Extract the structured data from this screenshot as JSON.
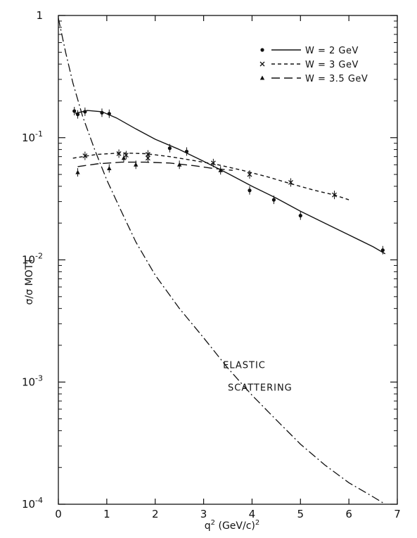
{
  "chart_data": {
    "type": "scatter",
    "title": "",
    "xlabel": "q² (GeV/c)²",
    "ylabel": "σ/σ MOTT",
    "xlim": [
      0,
      7
    ],
    "ylim": [
      0.0001,
      1
    ],
    "yscale": "log",
    "grid": false,
    "legend_position": "top-right",
    "x_ticks": [
      0,
      1,
      2,
      3,
      4,
      5,
      6,
      7
    ],
    "x_tick_labels": [
      "0",
      "1",
      "2",
      "3",
      "4",
      "5",
      "6",
      "7"
    ],
    "y_ticks": [
      1,
      0.1,
      0.01,
      0.001,
      0.0001
    ],
    "y_tick_labels": [
      {
        "base": "1",
        "exp": ""
      },
      {
        "base": "10",
        "exp": "-1"
      },
      {
        "base": "10",
        "exp": "-2"
      },
      {
        "base": "10",
        "exp": "-3"
      },
      {
        "base": "10",
        "exp": "-4"
      }
    ],
    "series": [
      {
        "name": "W = 2 GeV",
        "marker": "dot",
        "line_style": "solid",
        "points": [
          {
            "x": 0.33,
            "y": 0.165
          },
          {
            "x": 0.4,
            "y": 0.155
          },
          {
            "x": 0.55,
            "y": 0.163
          },
          {
            "x": 0.9,
            "y": 0.16
          },
          {
            "x": 1.05,
            "y": 0.157
          },
          {
            "x": 2.3,
            "y": 0.082
          },
          {
            "x": 2.65,
            "y": 0.077
          },
          {
            "x": 3.95,
            "y": 0.037
          },
          {
            "x": 4.45,
            "y": 0.031
          },
          {
            "x": 5.0,
            "y": 0.023
          },
          {
            "x": 6.7,
            "y": 0.012
          }
        ],
        "curve": [
          {
            "x": 0.35,
            "y": 0.158
          },
          {
            "x": 0.6,
            "y": 0.167
          },
          {
            "x": 0.9,
            "y": 0.163
          },
          {
            "x": 1.2,
            "y": 0.145
          },
          {
            "x": 1.6,
            "y": 0.118
          },
          {
            "x": 2.0,
            "y": 0.097
          },
          {
            "x": 2.5,
            "y": 0.08
          },
          {
            "x": 3.0,
            "y": 0.064
          },
          {
            "x": 3.5,
            "y": 0.051
          },
          {
            "x": 4.0,
            "y": 0.04
          },
          {
            "x": 4.5,
            "y": 0.032
          },
          {
            "x": 5.0,
            "y": 0.025
          },
          {
            "x": 5.5,
            "y": 0.02
          },
          {
            "x": 6.0,
            "y": 0.016
          },
          {
            "x": 6.5,
            "y": 0.0128
          },
          {
            "x": 6.75,
            "y": 0.0112
          }
        ]
      },
      {
        "name": "W = 3 GeV",
        "marker": "cross",
        "line_style": "short-dash",
        "points": [
          {
            "x": 0.55,
            "y": 0.071
          },
          {
            "x": 1.25,
            "y": 0.074
          },
          {
            "x": 1.4,
            "y": 0.072
          },
          {
            "x": 1.85,
            "y": 0.073
          },
          {
            "x": 1.85,
            "y": 0.068
          },
          {
            "x": 3.2,
            "y": 0.062
          },
          {
            "x": 3.95,
            "y": 0.05
          },
          {
            "x": 4.8,
            "y": 0.043
          },
          {
            "x": 5.7,
            "y": 0.034
          }
        ],
        "curve": [
          {
            "x": 0.3,
            "y": 0.068
          },
          {
            "x": 0.8,
            "y": 0.073
          },
          {
            "x": 1.3,
            "y": 0.075
          },
          {
            "x": 1.8,
            "y": 0.074
          },
          {
            "x": 2.3,
            "y": 0.07
          },
          {
            "x": 2.8,
            "y": 0.065
          },
          {
            "x": 3.3,
            "y": 0.06
          },
          {
            "x": 3.8,
            "y": 0.054
          },
          {
            "x": 4.3,
            "y": 0.048
          },
          {
            "x": 4.8,
            "y": 0.042
          },
          {
            "x": 5.3,
            "y": 0.037
          },
          {
            "x": 5.7,
            "y": 0.034
          },
          {
            "x": 6.0,
            "y": 0.031
          }
        ]
      },
      {
        "name": "W = 3.5 GeV",
        "marker": "triangle",
        "line_style": "long-dash",
        "points": [
          {
            "x": 0.4,
            "y": 0.052
          },
          {
            "x": 1.05,
            "y": 0.056
          },
          {
            "x": 1.35,
            "y": 0.068
          },
          {
            "x": 1.6,
            "y": 0.06
          },
          {
            "x": 2.5,
            "y": 0.06
          },
          {
            "x": 3.35,
            "y": 0.054
          }
        ],
        "curve": [
          {
            "x": 0.4,
            "y": 0.058
          },
          {
            "x": 0.8,
            "y": 0.061
          },
          {
            "x": 1.3,
            "y": 0.063
          },
          {
            "x": 1.8,
            "y": 0.063
          },
          {
            "x": 2.3,
            "y": 0.062
          },
          {
            "x": 2.8,
            "y": 0.059
          },
          {
            "x": 3.2,
            "y": 0.056
          },
          {
            "x": 3.6,
            "y": 0.054
          }
        ]
      }
    ],
    "elastic_curve": {
      "line_style": "dash-dot",
      "points": [
        {
          "x": 0.0,
          "y": 0.95
        },
        {
          "x": 0.15,
          "y": 0.5
        },
        {
          "x": 0.3,
          "y": 0.28
        },
        {
          "x": 0.5,
          "y": 0.15
        },
        {
          "x": 0.75,
          "y": 0.08
        },
        {
          "x": 1.0,
          "y": 0.045
        },
        {
          "x": 1.3,
          "y": 0.025
        },
        {
          "x": 1.6,
          "y": 0.014
        },
        {
          "x": 2.0,
          "y": 0.0075
        },
        {
          "x": 2.5,
          "y": 0.004
        },
        {
          "x": 3.0,
          "y": 0.0023
        },
        {
          "x": 3.5,
          "y": 0.0013
        },
        {
          "x": 4.0,
          "y": 0.00078
        },
        {
          "x": 4.5,
          "y": 0.00049
        },
        {
          "x": 5.0,
          "y": 0.00031
        },
        {
          "x": 5.5,
          "y": 0.00021
        },
        {
          "x": 6.0,
          "y": 0.00015
        },
        {
          "x": 6.5,
          "y": 0.000115
        },
        {
          "x": 6.75,
          "y": 0.0001
        }
      ]
    },
    "annotations": [
      {
        "text": "ELASTIC",
        "x": 3.4,
        "y": 0.0013
      },
      {
        "text": "SCATTERING",
        "x": 3.5,
        "y": 0.00085
      }
    ]
  }
}
